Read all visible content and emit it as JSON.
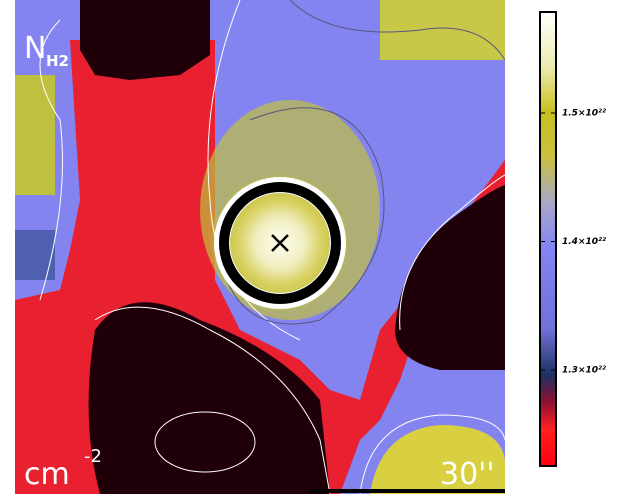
{
  "image": {
    "quantity": "N",
    "quantity_subscript": "H2",
    "unit": "cm",
    "unit_exponent": "-2",
    "scale_bar": "30''"
  },
  "colorbar": {
    "lim": [
      1.2253e+22,
      1.5786e+22
    ],
    "ticks": [
      {
        "value": 1.5e+22,
        "label": "1.5×10²²"
      },
      {
        "value": 1.4e+22,
        "label": "1.4×10²²"
      },
      {
        "value": 1.3e+22,
        "label": "1.3×10²²"
      }
    ]
  }
}
